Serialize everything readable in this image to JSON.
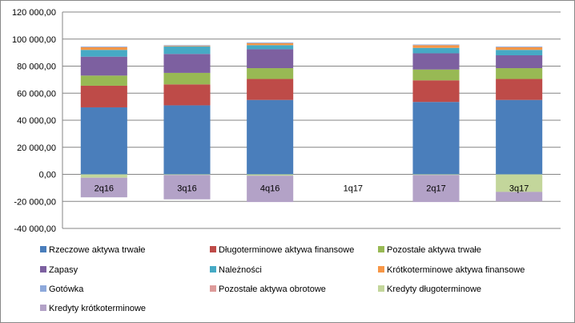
{
  "chart_data": {
    "type": "bar",
    "stacked": true,
    "categories": [
      "2q16",
      "3q16",
      "4q16",
      "1q17",
      "2q17",
      "3q17"
    ],
    "ylim": [
      -40000,
      120000
    ],
    "yticks": [
      -40000,
      -20000,
      0,
      20000,
      40000,
      60000,
      80000,
      100000,
      120000
    ],
    "ytick_labels": [
      "-40 000,00",
      "-20 000,00",
      "0,00",
      "20 000,00",
      "40 000,00",
      "60 000,00",
      "80 000,00",
      "100 000,00",
      "120 000,00"
    ],
    "grid": true,
    "legend_position": "bottom",
    "series": [
      {
        "name": "Rzeczowe aktywa trwałe",
        "color": "#4a7ebb",
        "values": [
          49500,
          51000,
          55000,
          null,
          53500,
          55000
        ]
      },
      {
        "name": "Długoterminowe aktywa finansowe",
        "color": "#be4b48",
        "values": [
          16000,
          15500,
          15500,
          null,
          16000,
          15500
        ]
      },
      {
        "name": "Pozostałe aktywa trwałe",
        "color": "#98b954",
        "values": [
          7500,
          8500,
          8000,
          null,
          8000,
          8000
        ]
      },
      {
        "name": "Zapasy",
        "color": "#7d60a0",
        "values": [
          14000,
          14000,
          14000,
          null,
          12000,
          9500
        ]
      },
      {
        "name": "Należności",
        "color": "#46aac5",
        "values": [
          5000,
          5500,
          3000,
          null,
          4000,
          4000
        ]
      },
      {
        "name": "Krótkoterminowe aktywa finansowe",
        "color": "#f79646",
        "values": [
          2000,
          500,
          1500,
          null,
          2000,
          2000
        ]
      },
      {
        "name": "Gotówka",
        "color": "#8ea9db",
        "values": [
          500,
          500,
          500,
          null,
          500,
          500
        ]
      },
      {
        "name": "Pozostałe aktywa obrotowe",
        "color": "#dd9b9a",
        "values": [
          0,
          0,
          0,
          null,
          0,
          0
        ]
      },
      {
        "name": "Kredyty długoterminowe",
        "color": "#c3d69b",
        "values": [
          -2500,
          -500,
          -1000,
          null,
          -500,
          -13000
        ]
      },
      {
        "name": "Kredyty krótkoterminowe",
        "color": "#b3a2c7",
        "values": [
          -14500,
          -18000,
          -19500,
          null,
          -20000,
          -7000
        ]
      }
    ]
  }
}
